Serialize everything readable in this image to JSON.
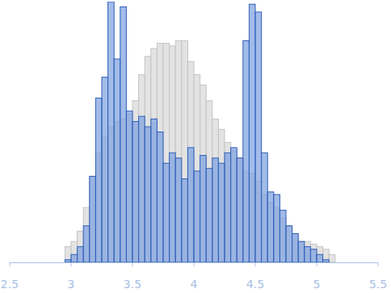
{
  "chart_data": {
    "type": "histogram",
    "bins": [
      2.95,
      3.0,
      3.05,
      3.1,
      3.15,
      3.2,
      3.25,
      3.3,
      3.35,
      3.4,
      3.45,
      3.5,
      3.55,
      3.6,
      3.65,
      3.7,
      3.75,
      3.8,
      3.85,
      3.9,
      3.95,
      4.0,
      4.05,
      4.1,
      4.15,
      4.2,
      4.25,
      4.3,
      4.35,
      4.4,
      4.45,
      4.5,
      4.55,
      4.6,
      4.65,
      4.7,
      4.75,
      4.8,
      4.85,
      4.9,
      4.95,
      5.0,
      5.05,
      5.1,
      5.15
    ],
    "series": [
      {
        "color": "#e3e3e3",
        "values": [
          6,
          8,
          12,
          21,
          33,
          42,
          48,
          52,
          54,
          55,
          57,
          62,
          72,
          79,
          82,
          84,
          84,
          83,
          85,
          85,
          77,
          72,
          68,
          62,
          55,
          51,
          46,
          43,
          40,
          35,
          34,
          31,
          26,
          23,
          21,
          17,
          14,
          11,
          8,
          8,
          7,
          6,
          5,
          3
        ]
      },
      {
        "color": "#7a9fe0",
        "values": [
          1,
          3,
          6,
          14,
          33,
          63,
          71,
          100,
          78,
          98,
          58,
          54,
          56,
          52,
          55,
          50,
          38,
          42,
          40,
          32,
          44,
          35,
          41,
          36,
          40,
          38,
          42,
          44,
          40,
          85,
          99,
          96,
          42,
          27,
          26,
          20,
          14,
          11,
          8,
          6,
          5,
          3,
          1,
          0
        ]
      }
    ],
    "xlim": [
      2.5,
      5.5
    ],
    "xticks": [
      2.5,
      3,
      3.5,
      4,
      4.5,
      5,
      5.5
    ],
    "ylim": [
      0,
      100
    ],
    "tick_labels": "x"
  }
}
